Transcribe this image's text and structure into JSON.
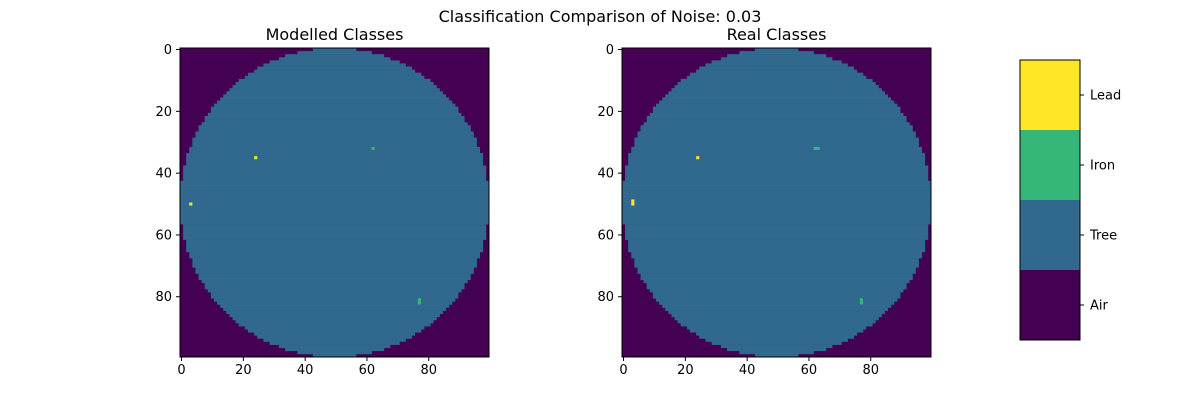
{
  "chart_data": {
    "type": "heatmap",
    "title": "Classification Comparison of Noise: 0.03",
    "colormap": {
      "classes": [
        "Air",
        "Tree",
        "Iron",
        "Lead"
      ],
      "colors": [
        "#440154",
        "#31688e",
        "#35b779",
        "#fde725"
      ]
    },
    "panels": [
      {
        "title": "Modelled Classes",
        "grid_size": 100,
        "background_class": "Air",
        "disk": {
          "class": "Tree",
          "center": [
            50,
            50
          ],
          "radius": 50
        },
        "patches": [
          {
            "class": "Lead",
            "x": 24,
            "y": 35,
            "w": 1,
            "h": 1
          },
          {
            "class": "Iron",
            "x": 62,
            "y": 32,
            "w": 1,
            "h": 1
          },
          {
            "class": "Lead",
            "x": 3,
            "y": 50,
            "w": 1,
            "h": 1
          },
          {
            "class": "Iron",
            "x": 77,
            "y": 81,
            "w": 1,
            "h": 2
          }
        ],
        "xticks": [
          0,
          20,
          40,
          60,
          80
        ],
        "yticks": [
          0,
          20,
          40,
          60,
          80
        ],
        "xlim": [
          -0.5,
          99.5
        ],
        "ylim": [
          99.5,
          -0.5
        ]
      },
      {
        "title": "Real Classes",
        "grid_size": 100,
        "background_class": "Air",
        "disk": {
          "class": "Tree",
          "center": [
            50,
            50
          ],
          "radius": 50
        },
        "patches": [
          {
            "class": "Lead",
            "x": 24,
            "y": 35,
            "w": 1,
            "h": 1
          },
          {
            "class": "Iron",
            "x": 62,
            "y": 32,
            "w": 2,
            "h": 1
          },
          {
            "class": "Lead",
            "x": 3,
            "y": 49,
            "w": 1,
            "h": 2
          },
          {
            "class": "Iron",
            "x": 77,
            "y": 81,
            "w": 1,
            "h": 2
          }
        ],
        "xticks": [
          0,
          20,
          40,
          60,
          80
        ],
        "yticks": [
          0,
          20,
          40,
          60,
          80
        ],
        "xlim": [
          -0.5,
          99.5
        ],
        "ylim": [
          99.5,
          -0.5
        ]
      }
    ],
    "colorbar": {
      "labels": [
        "Lead",
        "Iron",
        "Tree",
        "Air"
      ],
      "orientation": "vertical",
      "placement": "right"
    }
  }
}
